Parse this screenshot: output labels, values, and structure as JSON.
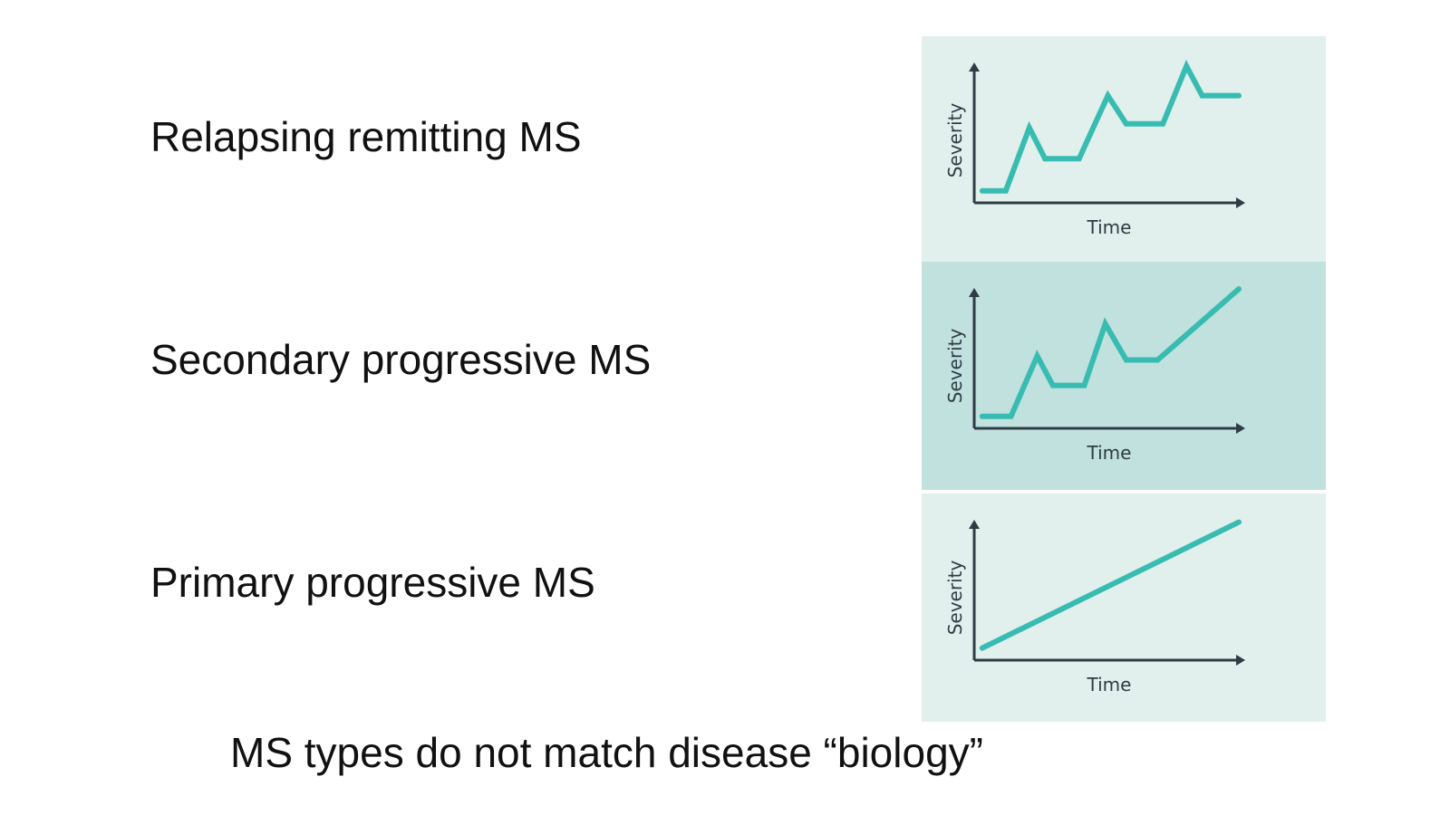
{
  "slide": {
    "labels": [
      "Relapsing remitting MS",
      "Secondary progressive MS",
      "Primary progressive MS"
    ],
    "caption": "MS types do not match disease “biology”"
  },
  "colors": {
    "panel_light": "#e1f0ed",
    "panel_dark": "#c0e1de",
    "line": "#38bcb1",
    "axis": "#2f3b45",
    "text": "#111111"
  },
  "chart_data": [
    {
      "type": "line",
      "panel_color": "panel_light",
      "xlabel": "Time",
      "ylabel": "Severity",
      "xlim": [
        0,
        100
      ],
      "ylim": [
        0,
        100
      ],
      "series": [
        {
          "x": [
            2,
            11,
            20,
            26,
            39,
            50,
            57,
            71,
            80,
            86,
            100
          ],
          "y": [
            9,
            9,
            56,
            33,
            33,
            80,
            59,
            59,
            102,
            80,
            80
          ]
        }
      ]
    },
    {
      "type": "line",
      "panel_color": "panel_dark",
      "xlabel": "Time",
      "ylabel": "Severity",
      "xlim": [
        0,
        100
      ],
      "ylim": [
        0,
        100
      ],
      "series": [
        {
          "x": [
            2,
            13,
            23,
            29,
            41,
            49,
            57,
            69,
            100
          ],
          "y": [
            9,
            9,
            54,
            32,
            32,
            78,
            51,
            51,
            104
          ]
        }
      ]
    },
    {
      "type": "line",
      "panel_color": "panel_light",
      "xlabel": "Time",
      "ylabel": "Severity",
      "xlim": [
        0,
        100
      ],
      "ylim": [
        0,
        100
      ],
      "series": [
        {
          "x": [
            2,
            100
          ],
          "y": [
            9,
            103
          ]
        }
      ]
    }
  ]
}
